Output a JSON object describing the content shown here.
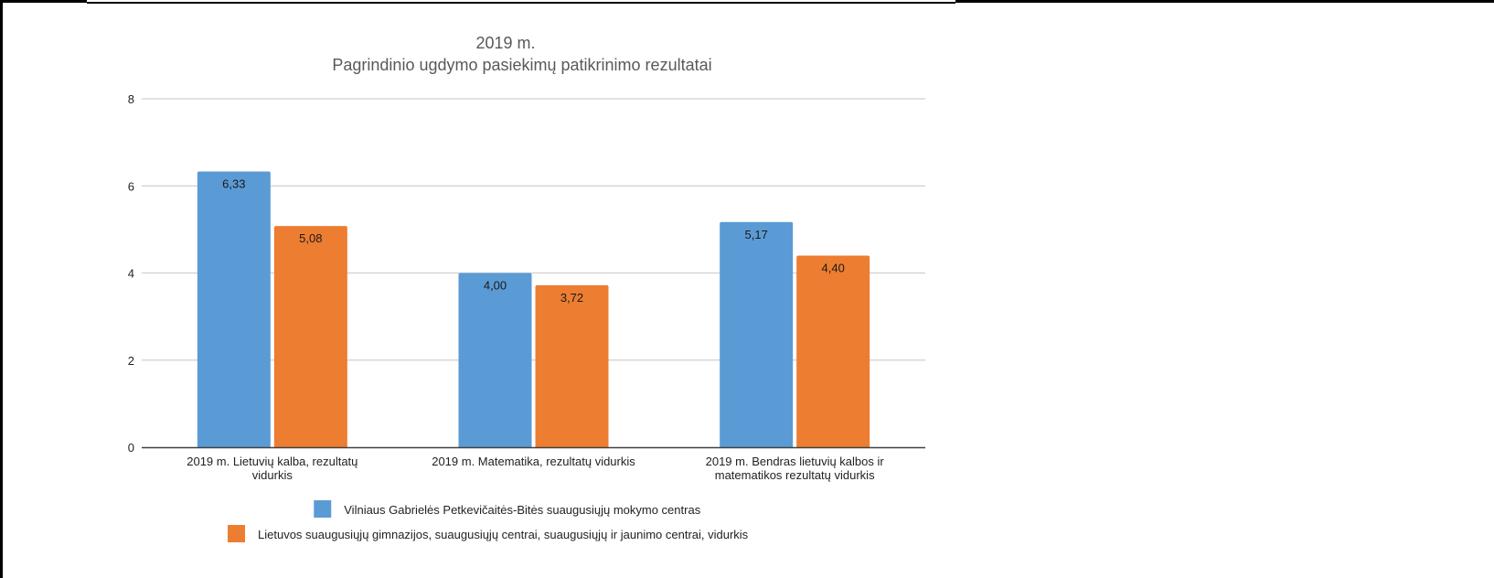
{
  "chart_data": {
    "type": "bar",
    "title": "2019 m.",
    "subtitle": "Pagrindinio ugdymo pasiekimų patikrinimo rezultatai",
    "xlabel": "",
    "ylabel": "",
    "ylim": [
      0,
      8
    ],
    "yticks": [
      0,
      2,
      4,
      6,
      8
    ],
    "grid": true,
    "legend_position": "bottom",
    "categories": [
      [
        "2019 m. Lietuvių kalba, rezultatų",
        "vidurkis"
      ],
      [
        "2019 m.  Matematika, rezultatų vidurkis"
      ],
      [
        "2019 m. Bendras lietuvių kalbos ir",
        "matematikos rezultatų vidurkis"
      ]
    ],
    "series": [
      {
        "name": "Vilniaus Gabrielės Petkevičaitės-Bitės suaugusiųjų mokymo centras",
        "color": "#5B9BD5",
        "values": [
          6.33,
          4.0,
          5.17
        ],
        "labels": [
          "6,33",
          "4,00",
          "5,17"
        ]
      },
      {
        "name": "Lietuvos suaugusiųjų gimnazijos, suaugusiųjų centrai, suaugusiųjų ir jaunimo centrai, vidurkis",
        "color": "#ED7D31",
        "values": [
          5.08,
          3.72,
          4.4
        ],
        "labels": [
          "5,08",
          "3,72",
          "4,40"
        ]
      }
    ]
  }
}
